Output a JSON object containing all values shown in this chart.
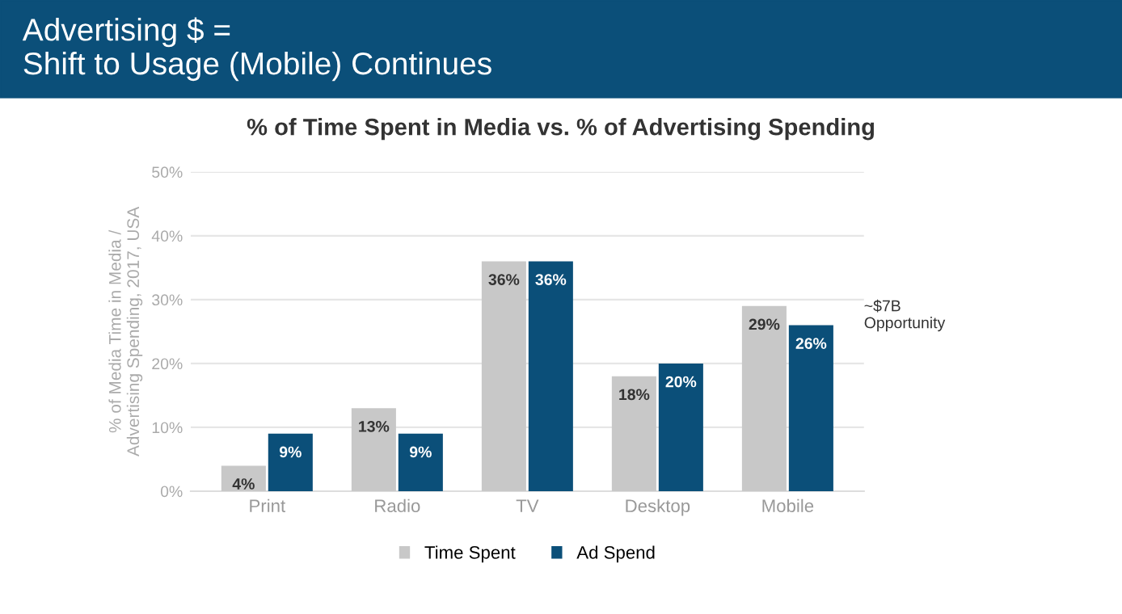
{
  "chart_data": {
    "type": "bar",
    "title": "Advertising $ =\nShift to Usage (Mobile) Continues",
    "subtitle": "% of Time Spent in Media vs. % of Advertising Spending",
    "ylabel": "% of Media Time in Media /\nAdvertising Spending, 2017, USA",
    "categories": [
      "Print",
      "Radio",
      "TV",
      "Desktop",
      "Mobile"
    ],
    "series": [
      {
        "name": "Time Spent",
        "color": "#c8c8c8",
        "values": [
          4,
          13,
          36,
          18,
          29
        ],
        "value_labels": [
          "4%",
          "13%",
          "36%",
          "18%",
          "29%"
        ]
      },
      {
        "name": "Ad Spend",
        "color": "#0b4f79",
        "values": [
          9,
          9,
          36,
          20,
          26
        ],
        "value_labels": [
          "9%",
          "9%",
          "36%",
          "20%",
          "26%"
        ]
      }
    ],
    "ylim": [
      0,
      50
    ],
    "yticks": [
      {
        "value": 0,
        "label": "0%"
      },
      {
        "value": 10,
        "label": "10%"
      },
      {
        "value": 20,
        "label": "20%"
      },
      {
        "value": 30,
        "label": "30%"
      },
      {
        "value": 40,
        "label": "40%"
      },
      {
        "value": 50,
        "label": "50%"
      }
    ],
    "grid": "y",
    "legend": "bottom",
    "annotations": [
      "~$7B\nOpportunity"
    ]
  }
}
